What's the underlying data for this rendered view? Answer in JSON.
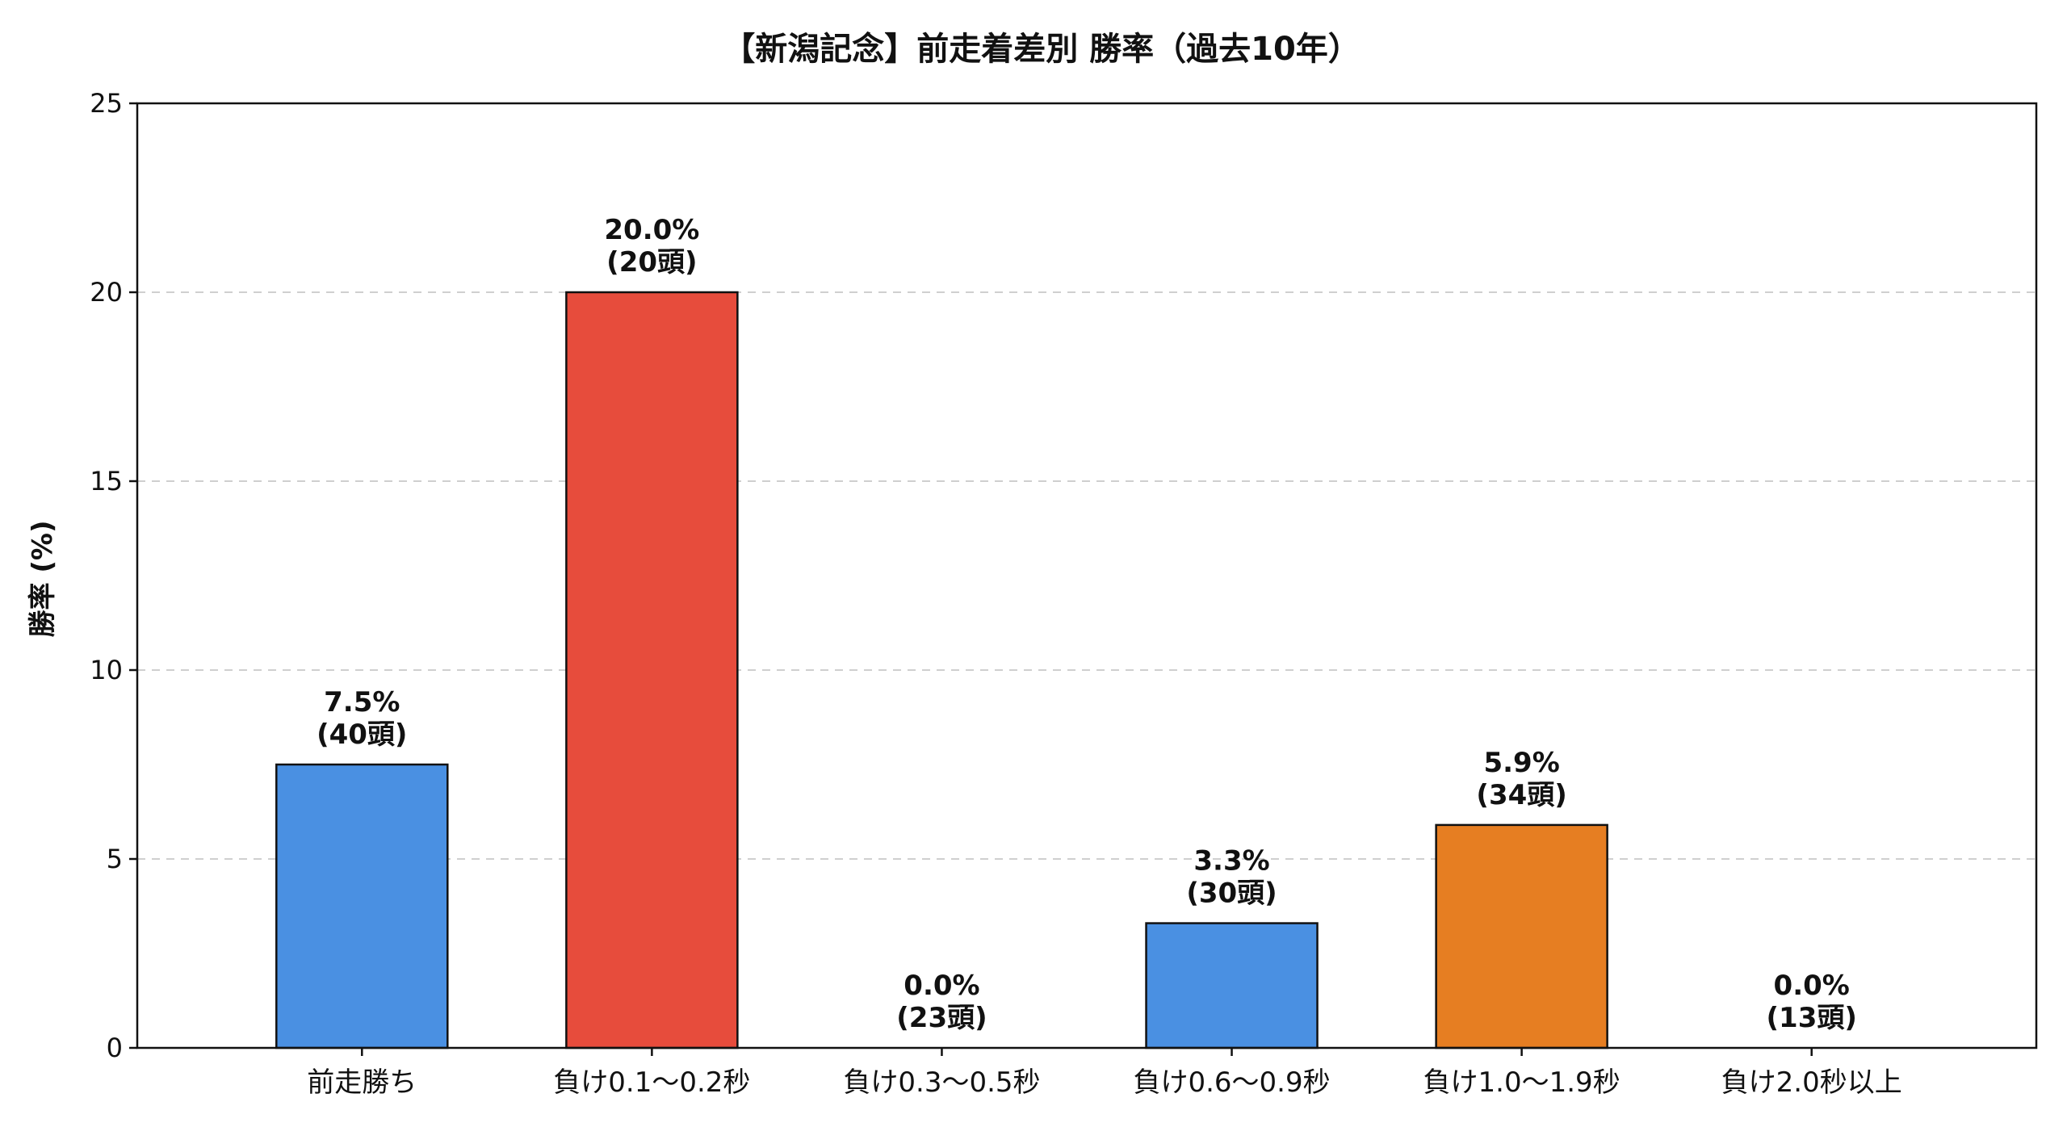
{
  "chart_data": {
    "type": "bar",
    "title": "【新潟記念】前走着差別 勝率（過去10年）",
    "xlabel": "",
    "ylabel": "勝率 (%)",
    "ylim": [
      0,
      25
    ],
    "yticks": [
      0,
      5,
      10,
      15,
      20,
      25
    ],
    "grid": "horizontal dashed",
    "categories": [
      "前走勝ち",
      "負け0.1〜0.2秒",
      "負け0.3〜0.5秒",
      "負け0.6〜0.9秒",
      "負け1.0〜1.9秒",
      "負け2.0秒以上"
    ],
    "values": [
      7.5,
      20.0,
      0.0,
      3.3,
      5.9,
      0.0
    ],
    "value_labels": [
      "7.5%",
      "20.0%",
      "0.0%",
      "3.3%",
      "5.9%",
      "0.0%"
    ],
    "count_labels": [
      "(40頭)",
      "(20頭)",
      "(23頭)",
      "(30頭)",
      "(34頭)",
      "(13頭)"
    ],
    "colors": [
      "#4a90e2",
      "#e74c3c",
      "#4a90e2",
      "#4a90e2",
      "#e67e22",
      "#4a90e2"
    ]
  }
}
